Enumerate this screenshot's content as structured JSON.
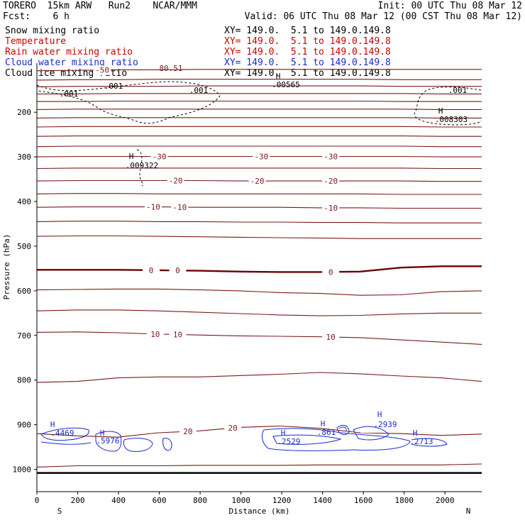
{
  "header": {
    "title_left": "TORERO  15km ARW   Run2    NCAR/MMM",
    "init": "Init: 00 UTC Thu 08 Mar 12",
    "fcst": "Fcst:    6 h",
    "valid": "Valid: 06 UTC Thu 08 Mar 12 (00 CST Thu 08 Mar 12)"
  },
  "legend": [
    {
      "name": "Snow mixing ratio",
      "color": "#000000",
      "xy": "XY= 149.0.  5.1 to 149.0.149.8"
    },
    {
      "name": "Temperature",
      "color": "#cc0000",
      "xy": "XY= 149.0.  5.1 to 149.0.149.8"
    },
    {
      "name": "Rain water mixing ratio",
      "color": "#cc0000",
      "xy": "XY= 149.0.  5.1 to 149.0.149.8"
    },
    {
      "name": "Cloud water mixing ratio",
      "color": "#1a2bd0",
      "xy": "XY= 149.0.  5.1 to 149.0.149.8"
    },
    {
      "name": "Cloud ice mixing ratio",
      "color": "#000000",
      "xy": "XY= 149.0.  5.1 to 149.0.149.8"
    }
  ],
  "colors": {
    "temperature": "#7a1a1a",
    "temperature_zero": "#6b0000",
    "cloud_water": "#1a2bd0",
    "snow": "#000000"
  },
  "chart_data": {
    "type": "cross-section contour",
    "xlabel": "Distance (km)",
    "ylabel": "Pressure (hPa)",
    "xlim": [
      0,
      2180
    ],
    "ylim": [
      1050,
      90
    ],
    "x_ticks": [
      0,
      200,
      400,
      600,
      800,
      1000,
      1200,
      1400,
      1600,
      1800,
      2000
    ],
    "y_ticks": [
      1000,
      900,
      800,
      700,
      600,
      500,
      400,
      300,
      200
    ],
    "left_end_label": "S",
    "right_end_label": "N",
    "temperature_contours": [
      {
        "level": -50,
        "label": "-50",
        "p": [
          107,
          106,
          105,
          105,
          104,
          104,
          104,
          104,
          104,
          104,
          104,
          104
        ]
      },
      {
        "level": -48,
        "label": "",
        "p": [
          128,
          127,
          127,
          126,
          126,
          126,
          126,
          126,
          126,
          127,
          127,
          127
        ]
      },
      {
        "level": -46,
        "label": "",
        "p": [
          143,
          142,
          142,
          142,
          141,
          141,
          141,
          141,
          141,
          142,
          142,
          142
        ]
      },
      {
        "level": -44,
        "label": "",
        "p": [
          159,
          159,
          158,
          158,
          158,
          158,
          158,
          158,
          158,
          158,
          159,
          159
        ]
      },
      {
        "level": -42,
        "label": "",
        "p": [
          176,
          176,
          175,
          175,
          175,
          175,
          175,
          175,
          175,
          176,
          176,
          176
        ]
      },
      {
        "level": -40,
        "label": "",
        "p": [
          194,
          193,
          193,
          193,
          193,
          193,
          193,
          193,
          193,
          193,
          194,
          194
        ]
      },
      {
        "level": -38,
        "label": "",
        "p": [
          213,
          212,
          212,
          212,
          212,
          212,
          212,
          212,
          212,
          212,
          213,
          213
        ]
      },
      {
        "level": -36,
        "label": "",
        "p": [
          233,
          232,
          232,
          232,
          232,
          232,
          232,
          232,
          232,
          232,
          233,
          233
        ]
      },
      {
        "level": -34,
        "label": "",
        "p": [
          254,
          253,
          253,
          253,
          253,
          253,
          253,
          253,
          253,
          253,
          254,
          254
        ]
      },
      {
        "level": -32,
        "label": "",
        "p": [
          277,
          276,
          276,
          276,
          276,
          276,
          276,
          276,
          276,
          276,
          277,
          277
        ]
      },
      {
        "level": -30,
        "label": "-30",
        "p": [
          300,
          299,
          299,
          299,
          299,
          299,
          299,
          299,
          299,
          299,
          300,
          300
        ]
      },
      {
        "level": -25,
        "label": "",
        "p": [
          326,
          325,
          325,
          325,
          325,
          325,
          325,
          325,
          325,
          325,
          326,
          326
        ]
      },
      {
        "level": -20,
        "label": "-20",
        "p": [
          354,
          353,
          353,
          353,
          353,
          354,
          354,
          354,
          354,
          354,
          355,
          355
        ]
      },
      {
        "level": -15,
        "label": "",
        "p": [
          383,
          382,
          382,
          383,
          383,
          383,
          383,
          383,
          383,
          384,
          384,
          384
        ]
      },
      {
        "level": -10,
        "label": "-10",
        "p": [
          413,
          412,
          412,
          412,
          413,
          413,
          413,
          414,
          414,
          415,
          415,
          415
        ]
      },
      {
        "level": -5,
        "label": "",
        "p": [
          445,
          444,
          444,
          445,
          445,
          446,
          446,
          447,
          447,
          448,
          448,
          448
        ]
      },
      {
        "level": -2,
        "label": "",
        "p": [
          478,
          477,
          477,
          478,
          479,
          480,
          481,
          482,
          483,
          483,
          483,
          483
        ]
      },
      {
        "level": 0,
        "label": "0",
        "p": [
          553,
          553,
          553,
          554,
          555,
          557,
          558,
          558,
          557,
          548,
          545,
          545
        ]
      },
      {
        "level": 2,
        "label": "",
        "p": [
          598,
          597,
          596,
          596,
          598,
          600,
          604,
          606,
          610,
          609,
          602,
          600
        ]
      },
      {
        "level": 5,
        "label": "",
        "p": [
          645,
          643,
          643,
          645,
          648,
          651,
          654,
          656,
          655,
          652,
          650,
          650
        ]
      },
      {
        "level": 10,
        "label": "10",
        "p": [
          693,
          692,
          694,
          697,
          699,
          701,
          702,
          703,
          705,
          710,
          715,
          720
        ]
      },
      {
        "level": 15,
        "label": "",
        "p": [
          805,
          803,
          795,
          793,
          793,
          790,
          787,
          783,
          786,
          791,
          795,
          803
        ]
      },
      {
        "level": 20,
        "label": "20",
        "p": [
          920,
          925,
          928,
          918,
          914,
          906,
          903,
          908,
          918,
          920,
          924,
          921
        ]
      },
      {
        "level": 22,
        "label": "",
        "p": [
          995,
          992,
          992,
          992,
          991,
          991,
          991,
          990,
          990,
          990,
          990,
          988
        ]
      }
    ],
    "snow_mixing_ratio_labels": [
      ".001",
      ".00565",
      ".009322",
      ".008303"
    ],
    "cloud_water_maxima": [
      ".4469",
      ".5976",
      ".2529",
      ".861",
      ".2939",
      ".2713"
    ],
    "extremum_marker": "H",
    "axis_note": "80.51"
  }
}
